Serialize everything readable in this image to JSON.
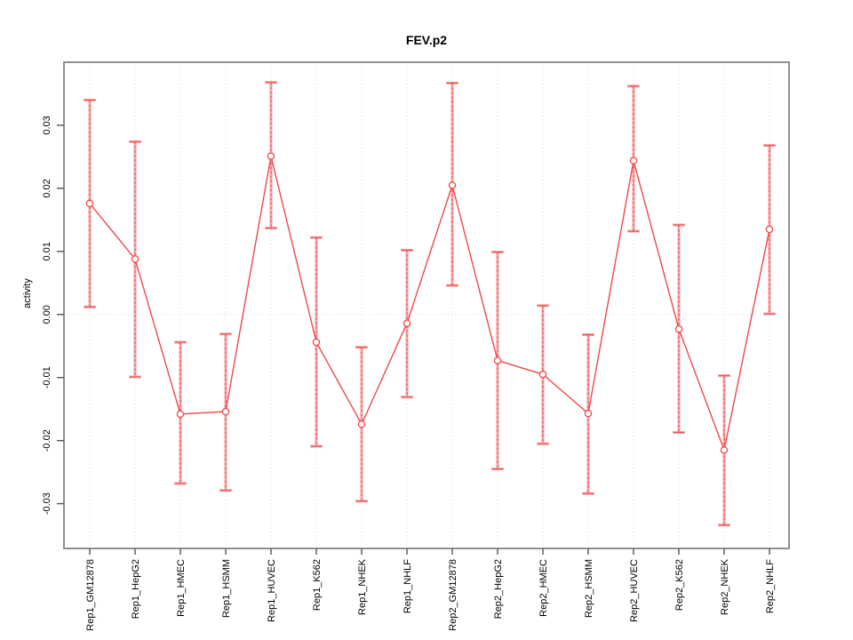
{
  "chart_data": {
    "type": "line",
    "subtype": "points-with-error-bars",
    "title": "FEV.p2",
    "xlabel": "",
    "ylabel": "activity",
    "categories": [
      "Rep1_GM12878",
      "Rep1_HepG2",
      "Rep1_HMEC",
      "Rep1_HSMM",
      "Rep1_HUVEC",
      "Rep1_K562",
      "Rep1_NHEK",
      "Rep1_NHLF",
      "Rep2_GM12878",
      "Rep2_HepG2",
      "Rep2_HMEC",
      "Rep2_HSMM",
      "Rep2_HUVEC",
      "Rep2_K562",
      "Rep2_NHEK",
      "Rep2_NHLF"
    ],
    "series": [
      {
        "name": "activity",
        "values": [
          0.0176,
          0.0088,
          -0.0158,
          -0.0154,
          0.0251,
          -0.0044,
          -0.0174,
          -0.0014,
          0.0205,
          -0.0073,
          -0.0095,
          -0.0157,
          0.0244,
          -0.0023,
          -0.0215,
          0.0135
        ],
        "lower": [
          0.0012,
          -0.0099,
          -0.0268,
          -0.0279,
          0.0137,
          -0.0209,
          -0.0296,
          -0.0131,
          0.0046,
          -0.0245,
          -0.0205,
          -0.0284,
          0.0132,
          -0.0187,
          -0.0334,
          0.0001
        ],
        "upper": [
          0.034,
          0.0274,
          -0.0044,
          -0.0031,
          0.0368,
          0.0122,
          -0.0052,
          0.0102,
          0.0367,
          0.0099,
          0.0014,
          -0.0032,
          0.0362,
          0.0142,
          -0.0097,
          0.0268
        ]
      }
    ],
    "ylim": [
      -0.0371,
      0.04
    ],
    "ytick_values": [
      0.03,
      0.02,
      0.01,
      0.0,
      -0.01,
      -0.02,
      -0.03
    ],
    "ytick_labels": [
      "0.03",
      "0.02",
      "0.01",
      "0.00",
      "-0.01",
      "-0.02",
      "-0.03"
    ],
    "grid": {
      "vertical_dotted_at_each_category": true,
      "horizontal_dotted_at_zero": true
    },
    "legend_position": "none",
    "colors": {
      "line": "#f04848",
      "point_stroke": "#f04848",
      "point_fill": "#ffffff",
      "errorbar_light": "#f7a6a6",
      "errorbar_dash": "#ea5050",
      "gridline": "#dcdcdc",
      "frame": "#909090",
      "tick": "#555555",
      "text": "#000000",
      "background": "#ffffff"
    }
  }
}
